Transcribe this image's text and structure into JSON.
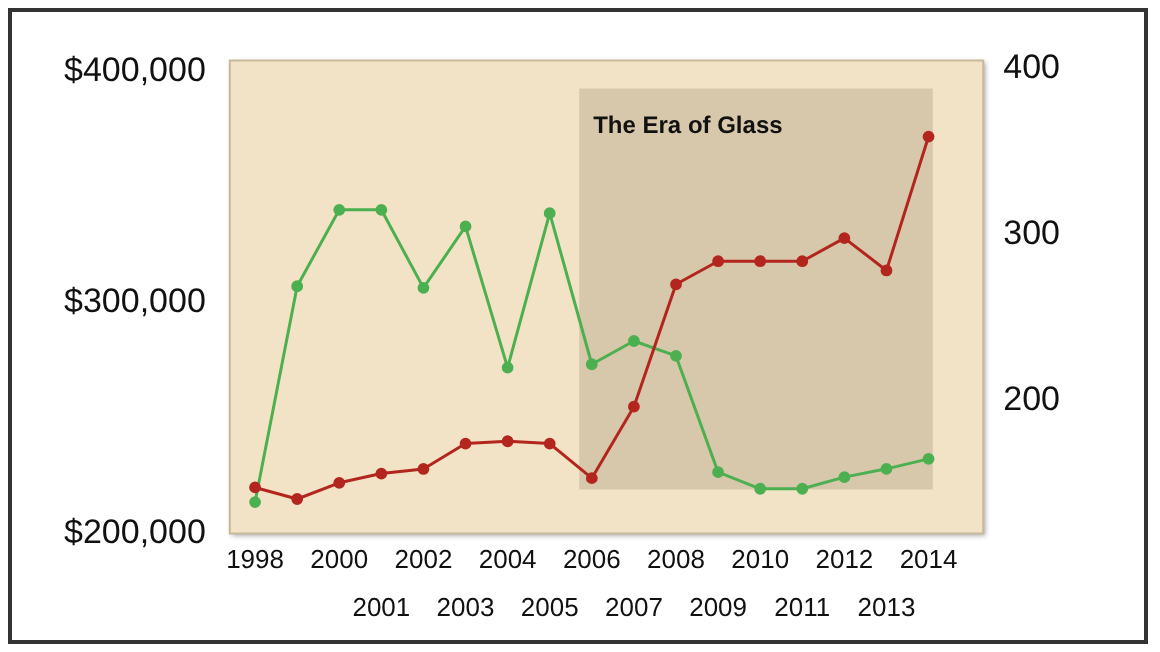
{
  "chart_data": {
    "type": "line",
    "x": [
      1998,
      1999,
      2000,
      2001,
      2002,
      2003,
      2004,
      2005,
      2006,
      2007,
      2008,
      2009,
      2010,
      2011,
      2012,
      2013,
      2014
    ],
    "series": [
      {
        "color": "#b3261e",
        "values": [
          220000,
          215000,
          222000,
          226000,
          228000,
          239000,
          240000,
          239000,
          224000,
          255000,
          308000,
          318000,
          318000,
          318000,
          328000,
          314000,
          372000
        ]
      },
      {
        "color": "#4caf50",
        "axis": "y2",
        "values": [
          139,
          269,
          315,
          315,
          268,
          305,
          220,
          313,
          222,
          236,
          227,
          157,
          147,
          147,
          154,
          159,
          165
        ]
      }
    ],
    "xlim": [
      1997.4,
      2015.3
    ],
    "xticks": [
      1998,
      2000,
      2002,
      2004,
      2006,
      2008,
      2010,
      2012,
      2014
    ],
    "x2lim": [
      1997.4,
      2015.3
    ],
    "x2ticks": [
      2001,
      2003,
      2005,
      2007,
      2009,
      2011,
      2013
    ],
    "ylim": [
      200000,
      405000
    ],
    "yticks": [
      {
        "value": 200000,
        "label": "$200,000"
      },
      {
        "value": 300000,
        "label": "$300,000"
      },
      {
        "value": 400000,
        "label": "$400,000"
      }
    ],
    "y2lim": [
      120,
      405
    ],
    "y2ticks": [
      200,
      300,
      400
    ],
    "bands": [
      {
        "axis": "x",
        "from": 2005.7,
        "to": 2014.1,
        "label": "The Era of Glass",
        "color": "#d8c8ab"
      }
    ],
    "grid": false,
    "legend": false,
    "marker": "circle",
    "line_style": "solid"
  }
}
